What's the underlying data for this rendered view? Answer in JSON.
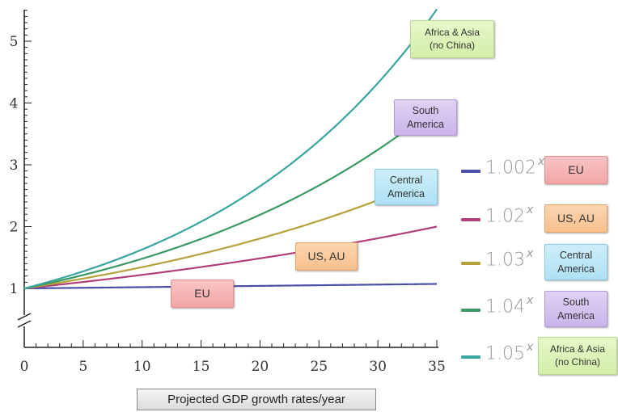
{
  "chart_data": {
    "type": "line",
    "title": "",
    "xlabel": "Projected GDP growth rates/year",
    "ylabel": "",
    "xlim": [
      0,
      35
    ],
    "ylim": [
      1,
      5.5
    ],
    "y_axis_break": true,
    "x_ticks": [
      "0",
      "5",
      "10",
      "15",
      "20",
      "25",
      "30",
      "35"
    ],
    "y_ticks": [
      "1",
      "2",
      "3",
      "4",
      "5"
    ],
    "grid": false,
    "legend_position": "right",
    "series": [
      {
        "name": "EU",
        "formula_base": "1.002",
        "rate": 1.002,
        "color": "#4a4fa8"
      },
      {
        "name": "US, AU",
        "formula_base": "1.02",
        "rate": 1.02,
        "color": "#b0407c"
      },
      {
        "name": "Central\nAmerica",
        "formula_base": "1.03",
        "rate": 1.03,
        "color": "#b5a23a"
      },
      {
        "name": "South\nAmerica",
        "formula_base": "1.04",
        "rate": 1.04,
        "color": "#3b9a62"
      },
      {
        "name": "Africa & Asia\n(no China)",
        "formula_base": "1.05",
        "rate": 1.05,
        "color": "#3aa59e"
      }
    ],
    "exponent_symbol": "x"
  }
}
